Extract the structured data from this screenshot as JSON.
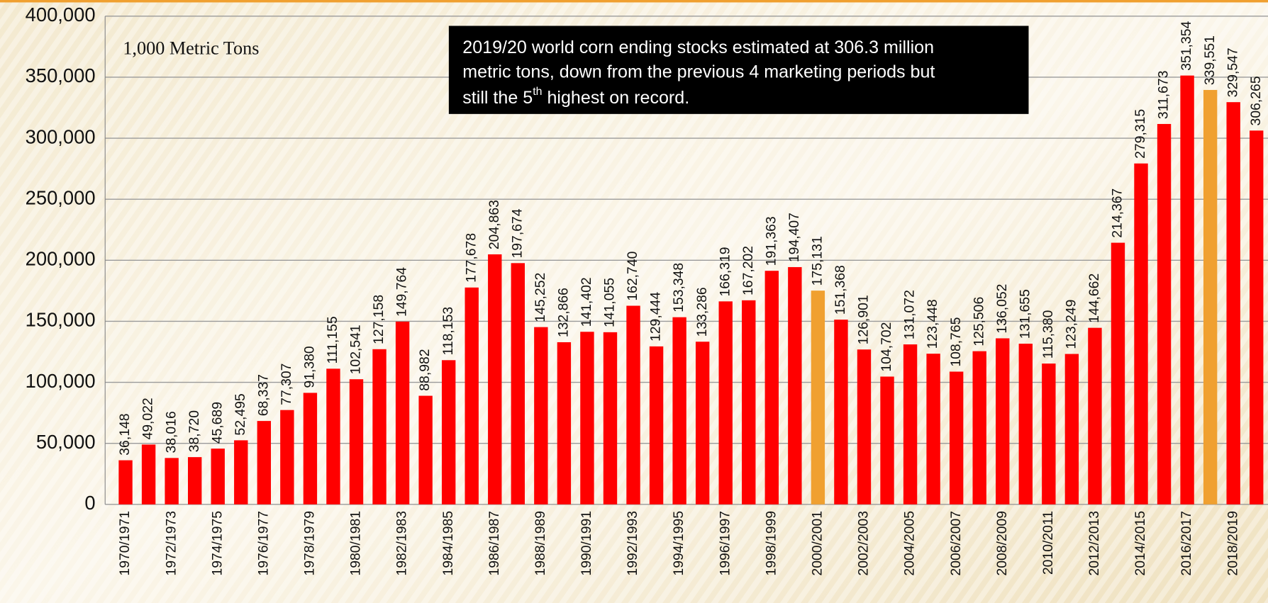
{
  "chart_data": {
    "type": "bar",
    "unit_label": "1,000 Metric Tons",
    "annotation": [
      "2019/20 world corn ending stocks estimated at 306.3 million",
      "metric tons, down from the previous 4 marketing periods but",
      "still the 5",
      "th",
      " highest on record."
    ],
    "categories": [
      "1970/1971",
      null,
      "1972/1973",
      null,
      "1974/1975",
      null,
      "1976/1977",
      null,
      "1978/1979",
      null,
      "1980/1981",
      null,
      "1982/1983",
      null,
      "1984/1985",
      null,
      "1986/1987",
      null,
      "1988/1989",
      null,
      "1990/1991",
      null,
      "1992/1993",
      null,
      "1994/1995",
      null,
      "1996/1997",
      null,
      "1998/1999",
      null,
      "2000/2001",
      null,
      "2002/2003",
      null,
      "2004/2005",
      null,
      "2006/2007",
      null,
      "2008/2009",
      null,
      "2010/2011",
      null,
      "2012/2013",
      null,
      "2014/2015",
      null,
      "2016/2017",
      null,
      "2018/2019",
      null
    ],
    "values": [
      36148,
      49022,
      38016,
      38720,
      45689,
      52495,
      68337,
      77307,
      91380,
      111155,
      102541,
      127158,
      149764,
      88982,
      118153,
      177678,
      204863,
      197674,
      145252,
      132866,
      141402,
      141055,
      162740,
      129444,
      153348,
      133286,
      166319,
      167202,
      191363,
      194407,
      175131,
      151368,
      126901,
      104702,
      131072,
      123448,
      108765,
      125506,
      136052,
      131655,
      115380,
      123249,
      144662,
      214367,
      279315,
      311673,
      351354,
      339551,
      329547,
      306265
    ],
    "value_labels": [
      "36,148",
      "49,022",
      "38,016",
      "38,720",
      "45,689",
      "52,495",
      "68,337",
      "77,307",
      "91,380",
      "111,155",
      "102,541",
      "127,158",
      "149,764",
      "88,982",
      "118,153",
      "177,678",
      "204,863",
      "197,674",
      "145,252",
      "132,866",
      "141,402",
      "141,055",
      "162,740",
      "129,444",
      "153,348",
      "133,286",
      "166,319",
      "167,202",
      "191,363",
      "194,407",
      "175,131",
      "151,368",
      "126,901",
      "104,702",
      "131,072",
      "123,448",
      "108,765",
      "125,506",
      "136,052",
      "131,655",
      "115,380",
      "123,249",
      "144,662",
      "214,367",
      "279,315",
      "311,673",
      "351,354",
      "339,551",
      "329,547",
      "306,265"
    ],
    "color": "#ff0000",
    "highlight_color": "#f0a030",
    "highlight_indices": [
      30,
      47
    ],
    "ylim": [
      0,
      400000
    ],
    "yticks": [
      {
        "value": 0,
        "label": "0"
      },
      {
        "value": 50000,
        "label": "50,000"
      },
      {
        "value": 100000,
        "label": "100,000"
      },
      {
        "value": 150000,
        "label": "150,000"
      },
      {
        "value": 200000,
        "label": "200,000"
      },
      {
        "value": 250000,
        "label": "250,000"
      },
      {
        "value": 300000,
        "label": "300,000"
      },
      {
        "value": 350000,
        "label": "350,000"
      },
      {
        "value": 400000,
        "label": "400,000"
      }
    ],
    "grid": true
  }
}
